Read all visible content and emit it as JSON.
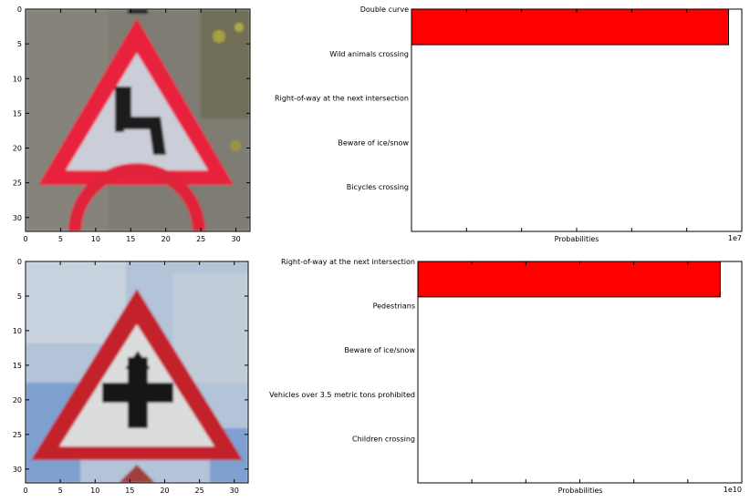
{
  "chart_data": [
    {
      "type": "image",
      "panel": "traffic-sign-image",
      "sign": "double-curve-warning-sign",
      "xlim": [
        0,
        32
      ],
      "ylim": [
        32,
        0
      ],
      "xticks": [
        0,
        5,
        10,
        15,
        20,
        25,
        30
      ],
      "yticks": [
        0,
        5,
        10,
        15,
        20,
        25,
        30
      ],
      "colors": {
        "sky": "#7d7a72",
        "border": "#e0203a",
        "fill": "#c9ccd6",
        "glyph": "#1a1a1a"
      }
    },
    {
      "type": "bar",
      "orientation": "horizontal",
      "categories": [
        "Double curve",
        "Wild animals crossing",
        "Right-of-way at the next intersection",
        "Beware of ice/snow",
        "Bicycles crossing"
      ],
      "values": [
        14400000,
        0,
        0,
        0,
        0
      ],
      "xlabel": "Probabilities",
      "scale_label": "1e7",
      "xlim": [
        0,
        15000000
      ],
      "bar_color": "#ff0000"
    },
    {
      "type": "image",
      "panel": "traffic-sign-image",
      "sign": "right-of-way-at-next-intersection-sign",
      "xlim": [
        0,
        32
      ],
      "ylim": [
        32,
        0
      ],
      "xticks": [
        0,
        5,
        10,
        15,
        20,
        25,
        30
      ],
      "yticks": [
        0,
        5,
        10,
        15,
        20,
        25,
        30
      ],
      "colors": {
        "sky": "#aebfd6",
        "border": "#c0202a",
        "fill": "#dcdcdc",
        "glyph": "#151515"
      }
    },
    {
      "type": "bar",
      "orientation": "horizontal",
      "categories": [
        "Right-of-way at the next intersection",
        "Pedestrians",
        "Beware of ice/snow",
        "Vehicles over 3.5 metric tons prohibited",
        "Children crossing"
      ],
      "values": [
        14000000000,
        0,
        0,
        0,
        0
      ],
      "xlabel": "Probabilities",
      "scale_label": "1e10",
      "xlim": [
        0,
        15000000000
      ],
      "bar_color": "#ff0000"
    }
  ]
}
